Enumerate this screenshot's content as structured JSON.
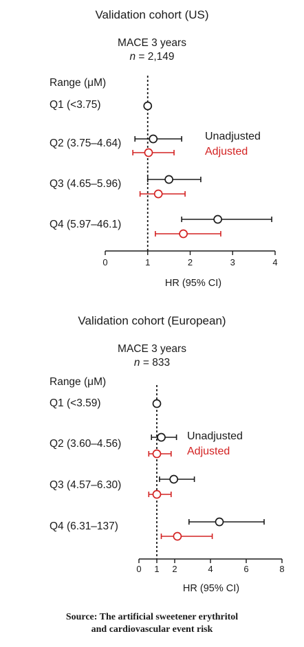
{
  "colors": {
    "unadjusted": "#1a1a1a",
    "adjusted": "#d32222"
  },
  "chart_data": [
    {
      "type": "forest",
      "title": "Validation cohort (US)",
      "outcome": "MACE 3 years",
      "n_label": "n",
      "n_value": "= 2,149",
      "range_header": "Range (μM)",
      "xlabel": "HR (95% CI)",
      "xlim": [
        0,
        4
      ],
      "xticks": [
        "0",
        "1",
        "2",
        "3",
        "4"
      ],
      "reference_line": 1,
      "legend": [
        "Unadjusted",
        "Adjusted"
      ],
      "rows": [
        {
          "label": "Q1 (<3.75)",
          "unadjusted": {
            "hr": 1.0,
            "lo": 1.0,
            "hi": 1.0
          },
          "adjusted": null
        },
        {
          "label": "Q2 (3.75–4.64)",
          "unadjusted": {
            "hr": 1.13,
            "lo": 0.7,
            "hi": 1.8
          },
          "adjusted": {
            "hr": 1.02,
            "lo": 0.65,
            "hi": 1.62
          }
        },
        {
          "label": "Q3 (4.65–5.96)",
          "unadjusted": {
            "hr": 1.5,
            "lo": 1.0,
            "hi": 2.25
          },
          "adjusted": {
            "hr": 1.25,
            "lo": 0.82,
            "hi": 1.88
          }
        },
        {
          "label": "Q4 (5.97–46.1)",
          "unadjusted": {
            "hr": 2.65,
            "lo": 1.8,
            "hi": 3.92
          },
          "adjusted": {
            "hr": 1.84,
            "lo": 1.18,
            "hi": 2.72
          }
        }
      ]
    },
    {
      "type": "forest",
      "title": "Validation cohort (European)",
      "outcome": "MACE 3 years",
      "n_label": "n",
      "n_value": "= 833",
      "range_header": "Range (μM)",
      "xlabel": "HR (95% CI)",
      "xlim": [
        0,
        8
      ],
      "xticks": [
        "0",
        "1",
        "2",
        "4",
        "6",
        "8"
      ],
      "reference_line": 1,
      "legend": [
        "Unadjusted",
        "Adjusted"
      ],
      "rows": [
        {
          "label": "Q1 (<3.59)",
          "unadjusted": {
            "hr": 1.0,
            "lo": 1.0,
            "hi": 1.0
          },
          "adjusted": null
        },
        {
          "label": "Q2 (3.60–4.56)",
          "unadjusted": {
            "hr": 1.25,
            "lo": 0.7,
            "hi": 2.1
          },
          "adjusted": {
            "hr": 1.0,
            "lo": 0.55,
            "hi": 1.8
          }
        },
        {
          "label": "Q3 (4.57–6.30)",
          "unadjusted": {
            "hr": 1.95,
            "lo": 1.15,
            "hi": 3.1
          },
          "adjusted": {
            "hr": 1.0,
            "lo": 0.55,
            "hi": 1.8
          }
        },
        {
          "label": "Q4 (6.31–137)",
          "unadjusted": {
            "hr": 4.5,
            "lo": 2.8,
            "hi": 7.0
          },
          "adjusted": {
            "hr": 2.15,
            "lo": 1.25,
            "hi": 4.1
          }
        }
      ]
    }
  ],
  "source": {
    "line1": "Source: The artificial sweetener erythritol",
    "line2": "and cardiovascular event risk"
  }
}
